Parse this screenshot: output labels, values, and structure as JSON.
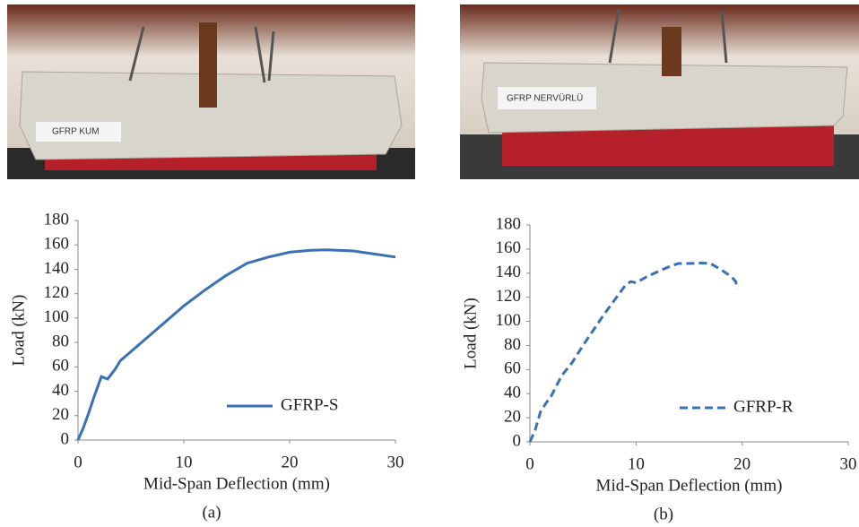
{
  "photos": [
    {
      "label": "GFRP KUM"
    },
    {
      "label": "GFRP NERVÜRLÜ"
    }
  ],
  "chart_data": [
    {
      "type": "line",
      "caption": "(a)",
      "xlabel": "Mid-Span Deflection (mm)",
      "ylabel": "Load (kN)",
      "x": [
        0,
        0.5,
        1,
        1.5,
        2.2,
        2.8,
        3.5,
        4,
        6,
        8,
        10,
        12,
        14,
        16,
        18,
        20,
        22,
        23.5,
        26,
        28,
        30
      ],
      "series": [
        {
          "name": "GFRP-S",
          "color": "#3a70b5",
          "line_style": "solid",
          "values": [
            0,
            10,
            22,
            35,
            52,
            50,
            58,
            65,
            80,
            95,
            110,
            123,
            135,
            145,
            150,
            154,
            155.5,
            156,
            155,
            152.5,
            150
          ]
        }
      ],
      "xlim": [
        0,
        30
      ],
      "xticks": [
        0,
        10,
        20,
        30
      ],
      "ylim": [
        0,
        180
      ],
      "yticks": [
        0,
        20,
        40,
        60,
        80,
        100,
        120,
        140,
        160,
        180
      ],
      "legend": "lower right",
      "grid": false
    },
    {
      "type": "line",
      "caption": "(b)",
      "xlabel": "Mid-Span Deflection (mm)",
      "ylabel": "Load (kN)",
      "x": [
        0,
        0.5,
        1,
        1.5,
        2,
        3,
        4,
        5,
        6,
        7,
        8,
        9,
        9.5,
        10,
        11,
        12,
        13,
        14,
        15,
        16,
        17,
        18,
        19,
        19.4,
        19.5
      ],
      "series": [
        {
          "name": "GFRP-R",
          "color": "#3a70b5",
          "line_style": "dashed",
          "values": [
            0,
            10,
            25,
            32,
            38,
            55,
            66,
            80,
            93,
            106,
            118,
            130,
            133,
            132,
            137,
            141,
            145,
            148,
            148,
            148.5,
            148,
            143,
            137,
            133,
            127
          ]
        }
      ],
      "xlim": [
        0,
        30
      ],
      "xticks": [
        0,
        10,
        20,
        30
      ],
      "ylim": [
        0,
        180
      ],
      "yticks": [
        0,
        20,
        40,
        60,
        80,
        100,
        120,
        140,
        160,
        180
      ],
      "legend": "lower right",
      "grid": false
    }
  ]
}
